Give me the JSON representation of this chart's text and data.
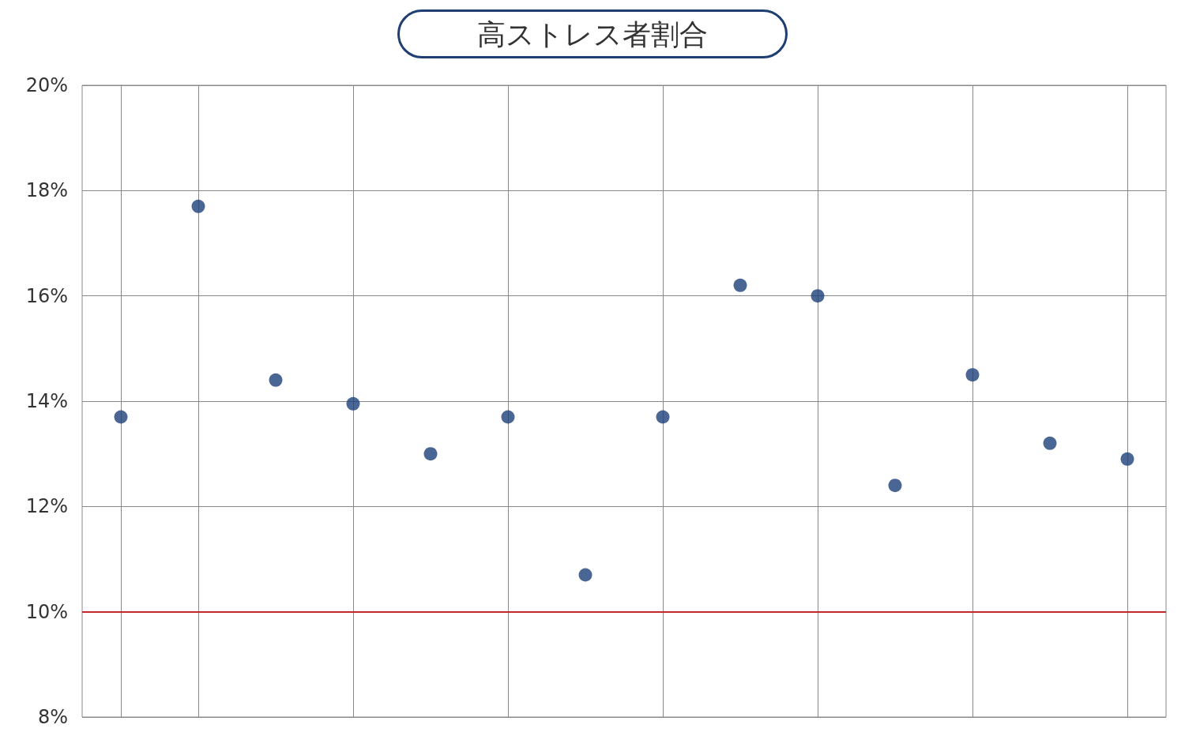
{
  "chart_data": {
    "type": "scatter",
    "title": "高ストレス者割合",
    "categories": [
      null,
      null,
      null,
      null,
      null,
      null,
      null,
      null,
      null,
      null,
      null,
      null,
      null,
      null
    ],
    "values": [
      13.7,
      17.7,
      14.4,
      13.95,
      13.0,
      13.7,
      10.7,
      13.7,
      16.2,
      16.0,
      12.4,
      14.5,
      13.2,
      12.9
    ],
    "color": "#1b4079",
    "ylim": [
      8,
      20
    ],
    "yticks": [
      {
        "value": 8,
        "label": "8%"
      },
      {
        "value": 10,
        "label": "10%"
      },
      {
        "value": 12,
        "label": "12%"
      },
      {
        "value": 14,
        "label": "14%"
      },
      {
        "value": 16,
        "label": "16%"
      },
      {
        "value": 18,
        "label": "18%"
      },
      {
        "value": 20,
        "label": "20%"
      }
    ],
    "ref_lines": [
      {
        "axis": "y",
        "value": 10,
        "color": "#c1272d"
      }
    ],
    "grid": true,
    "marker": "circle",
    "tick_labels": "y"
  }
}
